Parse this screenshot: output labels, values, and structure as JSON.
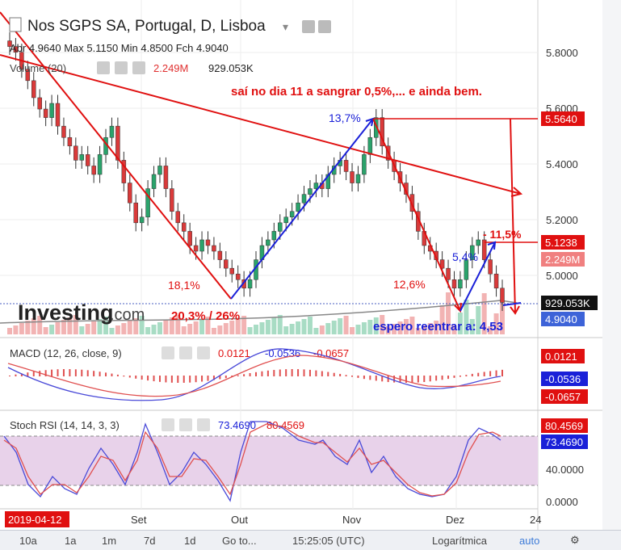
{
  "header": {
    "title": "Nos SGPS SA, Portugal, D, Lisboa",
    "ohlc": "Abr 4.9640  Max 5.1150  Min 4.8500  Fch 4.9040",
    "volume_label": "Volume (20)",
    "volume_value_red": "2.249M",
    "volume_value_black": "929.053K"
  },
  "watermark": {
    "logo_text": "Investing",
    "logo_suffix": ".com"
  },
  "annotations": {
    "comment": "saí no dia 11 a sangrar 0,5%,... e ainda bem.",
    "pct_137": "13,7%",
    "pct_181": "18,1%",
    "pct_126": "12,6%",
    "pct_54": "5,4%",
    "pct_115": "- 11,5%",
    "pct_203": "20,3% / 26%",
    "reentry": "espero reentrar a: 4,53"
  },
  "price_labels": {
    "p1": "5.5640",
    "p2": "5.1238",
    "vol_red": "2.249M",
    "vol_black": "929.053K",
    "close": "4.9040"
  },
  "macd": {
    "label": "MACD (12, 26, close, 9)",
    "v1": "0.0121",
    "v2": "-0.0536",
    "v3": "-0.0657",
    "axis1": "0.0121",
    "axis2": "-0.0536",
    "axis3": "-0.0657"
  },
  "rsi": {
    "label": "Stoch RSI (14, 14, 3, 3)",
    "v1": "73.4690",
    "v2": "80.4569",
    "axis1": "80.4569",
    "axis2": "73.4690"
  },
  "date_badge": "2019-04-12",
  "bottom": {
    "b10a": "10a",
    "b1a": "1a",
    "b1m": "1m",
    "b7d": "7d",
    "b1d": "1d",
    "goto": "Go to...",
    "time": "15:25:05 (UTC)",
    "scale": "Logarítmica",
    "auto": "auto"
  },
  "chart_data": {
    "type": "candlestick",
    "price_axis_ticks": [
      "5.8000",
      "5.6000",
      "5.4000",
      "5.2000",
      "5.0000"
    ],
    "rsi_axis_ticks": [
      "40.0000",
      "0.0000"
    ],
    "x_ticks": [
      "Set",
      "Out",
      "Nov",
      "Dez",
      "24"
    ],
    "ylim": [
      4.85,
      5.85
    ],
    "series": [
      {
        "name": "price",
        "values": [
          5.8,
          5.78,
          5.72,
          5.68,
          5.62,
          5.58,
          5.55,
          5.6,
          5.52,
          5.48,
          5.45,
          5.4,
          5.42,
          5.38,
          5.35,
          5.42,
          5.48,
          5.52,
          5.4,
          5.32,
          5.25,
          5.18,
          5.2,
          5.3,
          5.35,
          5.38,
          5.3,
          5.22,
          5.18,
          5.15,
          5.1,
          5.08,
          5.12,
          5.1,
          5.08,
          5.05,
          5.02,
          5.0,
          4.98,
          4.95,
          4.98,
          5.05,
          5.1,
          5.12,
          5.15,
          5.18,
          5.2,
          5.22,
          5.25,
          5.28,
          5.3,
          5.32,
          5.3,
          5.35,
          5.38,
          5.4,
          5.36,
          5.32,
          5.35,
          5.42,
          5.48,
          5.55,
          5.45,
          5.4,
          5.36,
          5.32,
          5.28,
          5.22,
          5.15,
          5.1,
          5.08,
          5.05,
          5.02,
          4.98,
          4.95,
          4.98,
          5.05,
          5.1,
          5.12,
          5.05,
          5.0,
          4.95,
          4.9
        ]
      }
    ]
  }
}
